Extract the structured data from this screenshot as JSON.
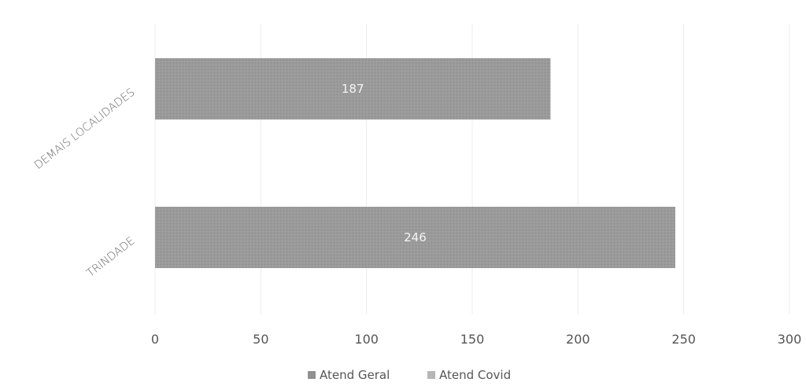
{
  "chart_data": {
    "type": "bar",
    "orientation": "horizontal",
    "stacked": true,
    "categories": [
      "DEMAIS LOCALIDADES",
      "TRINDADE"
    ],
    "series": [
      {
        "name": "Atend Geral",
        "values": [
          187,
          246
        ],
        "color": "#9a9a9a"
      },
      {
        "name": "Atend Covid",
        "values": [
          0,
          0
        ],
        "color": "#b9b9b9"
      }
    ],
    "data_labels": [
      "187",
      "246"
    ],
    "xlim": [
      0,
      300
    ],
    "x_ticks": [
      "0",
      "50",
      "100",
      "150",
      "200",
      "250",
      "300"
    ],
    "grid": true,
    "legend_position": "bottom",
    "title": "",
    "xlabel": "",
    "ylabel": ""
  }
}
